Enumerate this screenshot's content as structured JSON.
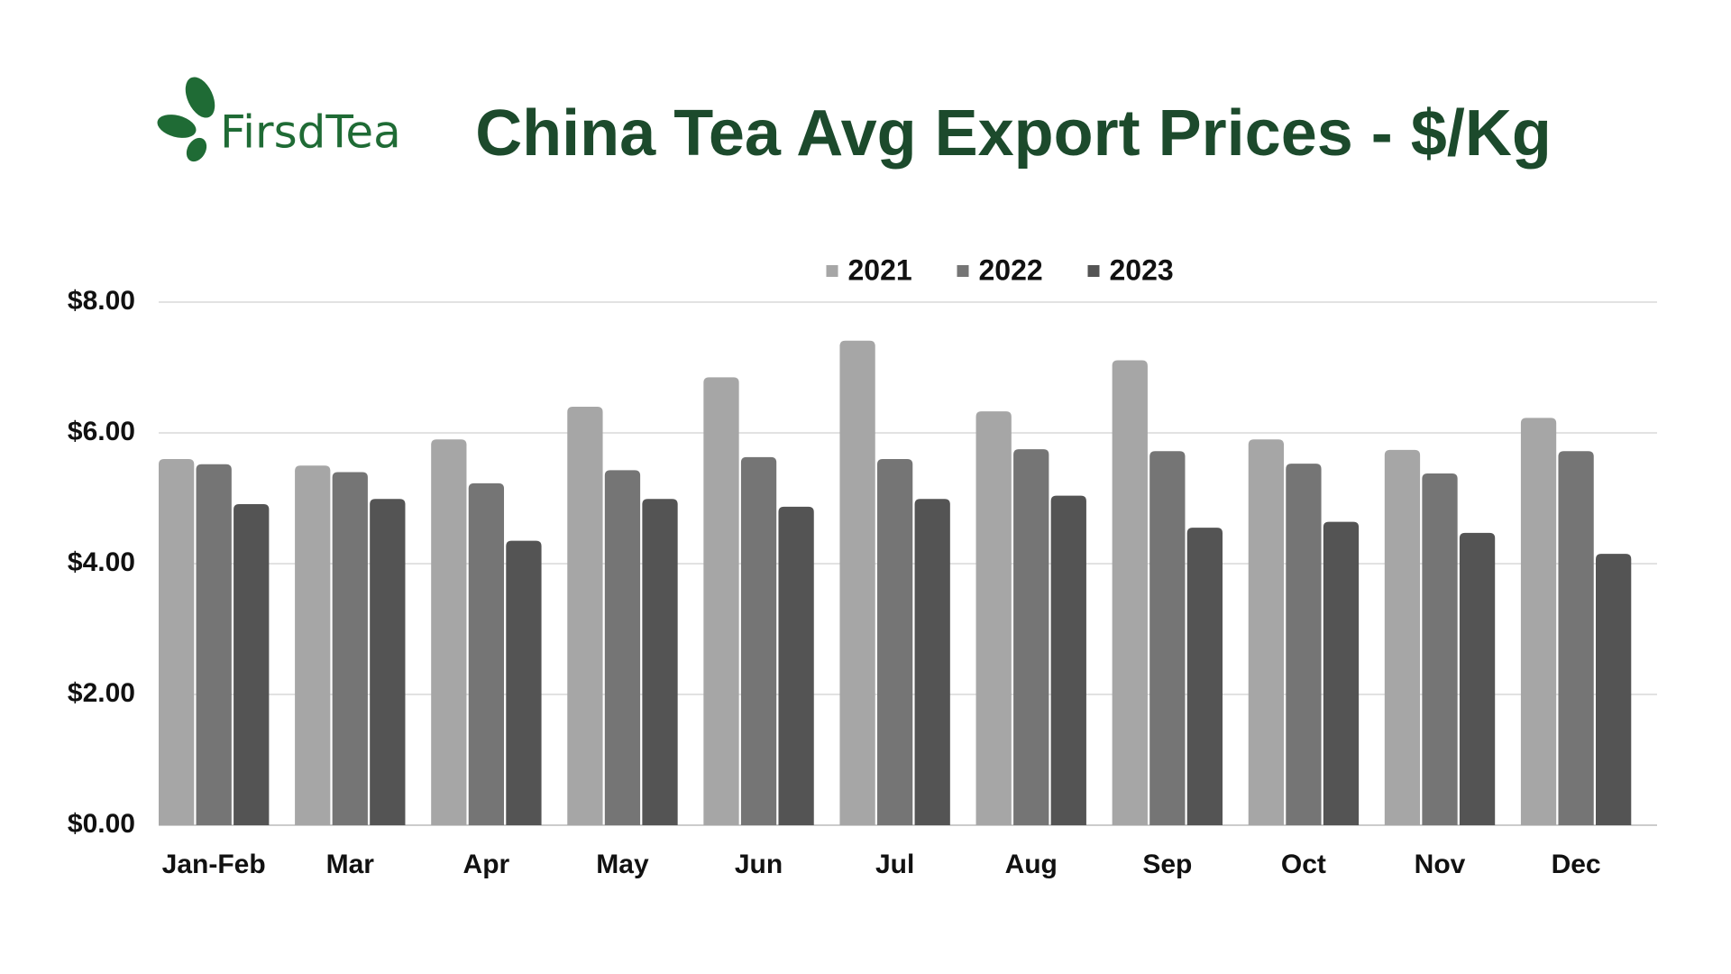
{
  "logo": "FirsdTea",
  "chart_data": {
    "type": "bar",
    "title": "China Tea Avg Export Prices - $/Kg",
    "categories": [
      "Jan-Feb",
      "Mar",
      "Apr",
      "May",
      "Jun",
      "Jul",
      "Aug",
      "Sep",
      "Oct",
      "Nov",
      "Dec"
    ],
    "series": [
      {
        "name": "2021",
        "color": "#a6a6a6",
        "values": [
          5.6,
          5.5,
          5.9,
          6.4,
          6.85,
          7.41,
          6.33,
          7.11,
          5.9,
          5.74,
          6.23
        ]
      },
      {
        "name": "2022",
        "color": "#757575",
        "values": [
          5.52,
          5.4,
          5.23,
          5.43,
          5.63,
          5.6,
          5.75,
          5.72,
          5.53,
          5.38,
          5.72
        ]
      },
      {
        "name": "2023",
        "color": "#545454",
        "values": [
          4.91,
          4.99,
          4.35,
          4.99,
          4.87,
          4.99,
          5.04,
          4.55,
          4.64,
          4.47,
          4.15
        ]
      }
    ],
    "ylim": [
      0,
      8
    ],
    "yticks": [
      {
        "value": 0,
        "label": "$0.00"
      },
      {
        "value": 2,
        "label": "$2.00"
      },
      {
        "value": 4,
        "label": "$4.00"
      },
      {
        "value": 6,
        "label": "$6.00"
      },
      {
        "value": 8,
        "label": "$8.00"
      }
    ],
    "grid": true,
    "legend": "top"
  }
}
